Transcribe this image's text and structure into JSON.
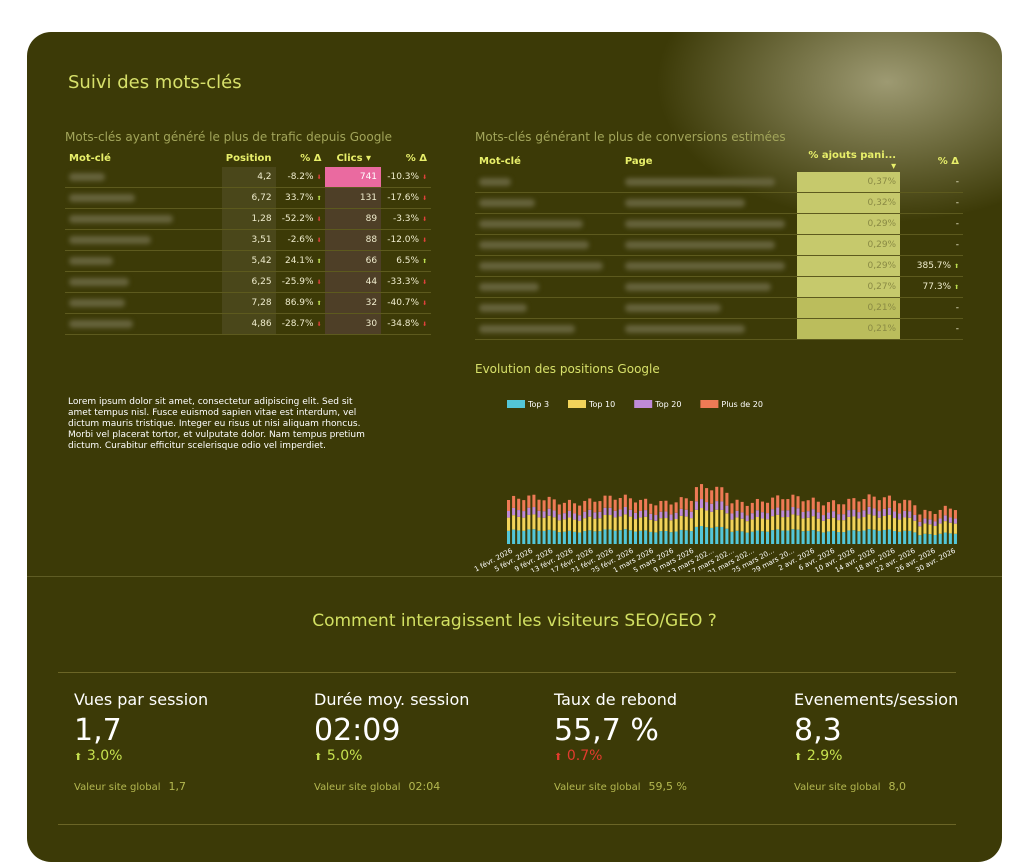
{
  "title": "Suivi des mots-clés",
  "table1": {
    "subtitle": "Mots-clés ayant généré le plus de trafic depuis Google",
    "headers": [
      "Mot-clé",
      "Position",
      "% Δ",
      "Clics ▾",
      "% Δ"
    ],
    "rows": [
      {
        "pos": "4,2",
        "d1": "-8.2%",
        "d1dir": "down",
        "clics": "741",
        "d2": "-10.3%",
        "d2dir": "down",
        "w": 36
      },
      {
        "pos": "6,72",
        "d1": "33.7%",
        "d1dir": "up",
        "clics": "131",
        "d2": "-17.6%",
        "d2dir": "down",
        "w": 66
      },
      {
        "pos": "1,28",
        "d1": "-52.2%",
        "d1dir": "down",
        "clics": "89",
        "d2": "-3.3%",
        "d2dir": "down",
        "w": 104
      },
      {
        "pos": "3,51",
        "d1": "-2.6%",
        "d1dir": "down",
        "clics": "88",
        "d2": "-12.0%",
        "d2dir": "down",
        "w": 82
      },
      {
        "pos": "5,42",
        "d1": "24.1%",
        "d1dir": "up",
        "clics": "66",
        "d2": "6.5%",
        "d2dir": "up",
        "w": 44
      },
      {
        "pos": "6,25",
        "d1": "-25.9%",
        "d1dir": "down",
        "clics": "44",
        "d2": "-33.3%",
        "d2dir": "down",
        "w": 60
      },
      {
        "pos": "7,28",
        "d1": "86.9%",
        "d1dir": "up",
        "clics": "32",
        "d2": "-40.7%",
        "d2dir": "down",
        "w": 56
      },
      {
        "pos": "4,86",
        "d1": "-28.7%",
        "d1dir": "down",
        "clics": "30",
        "d2": "-34.8%",
        "d2dir": "down",
        "w": 64
      }
    ]
  },
  "table2": {
    "subtitle": "Mots-clés générant le plus de conversions estimées",
    "headers": [
      "Mot-clé",
      "Page",
      "% ajouts pani... ▾",
      "% Δ"
    ],
    "rows": [
      {
        "pct": "0,37%",
        "d": "-",
        "w1": 32,
        "w2": 150
      },
      {
        "pct": "0,32%",
        "d": "-",
        "w1": 56,
        "w2": 120
      },
      {
        "pct": "0,29%",
        "d": "-",
        "w1": 104,
        "w2": 160
      },
      {
        "pct": "0,29%",
        "d": "-",
        "w1": 110,
        "w2": 150
      },
      {
        "pct": "0,29%",
        "d": "385.7%",
        "w1": 124,
        "w2": 160
      },
      {
        "pct": "0,27%",
        "d": "77.3%",
        "w1": 60,
        "w2": 146
      },
      {
        "pct": "0,21%",
        "d": "-",
        "w1": 48,
        "w2": 96
      },
      {
        "pct": "0,21%",
        "d": "-",
        "w1": 96,
        "w2": 120
      }
    ]
  },
  "lorem": "Lorem ipsum dolor sit amet, consectetur adipiscing elit. Sed sit amet tempus nisl. Fusce euismod sapien vitae est interdum, vel dictum mauris tristique. Integer eu risus ut nisi aliquam rhoncus. Morbi vel placerat tortor, et vulputate dolor. Nam tempus pretium dictum. Curabitur efficitur scelerisque odio vel imperdiet.",
  "chart_title": "Evolution des positions Google",
  "chart_data": {
    "type": "bar",
    "stacked": true,
    "legend_position": "top-left",
    "x_ticks": [
      "1 févr. 2026",
      "5 févr. 2026",
      "9 févr. 2026",
      "13 févr. 2026",
      "17 févr. 2026",
      "21 févr. 2026",
      "25 févr. 2026",
      "1 mars 2026",
      "5 mars 2026",
      "9 mars 2026",
      "13 mars 202...",
      "17 mars 202...",
      "21 mars 202...",
      "25 mars 20...",
      "29 mars 20...",
      "2 avr. 2026",
      "6 avr. 2026",
      "10 avr. 2026",
      "14 avr. 2026",
      "18 avr. 2026",
      "22 avr. 2026",
      "26 avr. 2026",
      "30 avr. 2026"
    ],
    "series": [
      {
        "name": "Top 3",
        "color": "#53c6d8"
      },
      {
        "name": "Top 10",
        "color": "#f2d35a"
      },
      {
        "name": "Top 20",
        "color": "#c08ad8"
      },
      {
        "name": "Plus de 20",
        "color": "#ee7a55"
      }
    ]
  },
  "section_title": "Comment interagissent les visiteurs SEO/GEO ?",
  "kpis": [
    {
      "label": "Vues par session",
      "value": "1,7",
      "arrow": "⬆",
      "delta": "3.0%",
      "dir": "up",
      "global_label": "Valeur site global",
      "global_value": "1,7"
    },
    {
      "label": "Durée moy. session",
      "value": "02:09",
      "arrow": "⬆",
      "delta": "5.0%",
      "dir": "up",
      "global_label": "Valeur site global",
      "global_value": "02:04"
    },
    {
      "label": "Taux de rebond",
      "value": "55,7 %",
      "arrow": "⬆",
      "delta": "0.7%",
      "dir": "down",
      "global_label": "Valeur site global",
      "global_value": "59,5 %"
    },
    {
      "label": "Evenements/session",
      "value": "8,3",
      "arrow": "⬆",
      "delta": "2.9%",
      "dir": "up",
      "global_label": "Valeur site global",
      "global_value": "8,0"
    }
  ]
}
